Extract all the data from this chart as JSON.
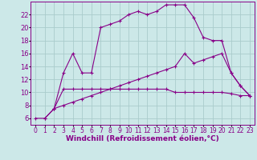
{
  "background_color": "#cce8e8",
  "grid_color": "#aacccc",
  "line_color": "#880088",
  "marker": "+",
  "xlabel": "Windchill (Refroidissement éolien,°C)",
  "xlabel_fontsize": 6.5,
  "xtick_fontsize": 5.5,
  "ytick_fontsize": 6.0,
  "xlim": [
    -0.5,
    23.5
  ],
  "ylim": [
    5,
    24
  ],
  "yticks": [
    6,
    8,
    10,
    12,
    14,
    16,
    18,
    20,
    22
  ],
  "xticks": [
    0,
    1,
    2,
    3,
    4,
    5,
    6,
    7,
    8,
    9,
    10,
    11,
    12,
    13,
    14,
    15,
    16,
    17,
    18,
    19,
    20,
    21,
    22,
    23
  ],
  "series": [
    {
      "x": [
        1,
        2,
        3,
        4,
        5,
        6,
        7,
        8,
        9,
        10,
        11,
        12,
        13,
        14,
        15,
        16,
        17,
        18,
        19,
        20,
        21,
        22,
        23
      ],
      "y": [
        6,
        7.5,
        13,
        16,
        13,
        13,
        20,
        20.5,
        21,
        22,
        22.5,
        22,
        22.5,
        23.5,
        23.5,
        23.5,
        21.5,
        18.5,
        18,
        18,
        13,
        11,
        9.5
      ]
    },
    {
      "x": [
        2,
        3,
        4,
        5,
        6,
        7,
        8,
        9,
        10,
        11,
        12,
        13,
        14,
        15,
        16,
        17,
        18,
        19,
        20,
        21,
        22,
        23
      ],
      "y": [
        7.5,
        8,
        8.5,
        9,
        9.5,
        10,
        10.5,
        11,
        11.5,
        12,
        12.5,
        13,
        13.5,
        14,
        16,
        14.5,
        15,
        15.5,
        16,
        13,
        11,
        9.5
      ]
    },
    {
      "x": [
        0,
        1,
        2,
        3,
        4,
        5,
        6,
        7,
        8,
        9,
        10,
        11,
        12,
        13,
        14,
        15,
        16,
        17,
        18,
        19,
        20,
        21,
        22,
        23
      ],
      "y": [
        6,
        6,
        7.5,
        10.5,
        10.5,
        10.5,
        10.5,
        10.5,
        10.5,
        10.5,
        10.5,
        10.5,
        10.5,
        10.5,
        10.5,
        10.0,
        10.0,
        10.0,
        10.0,
        10.0,
        10.0,
        9.8,
        9.5,
        9.5
      ]
    }
  ]
}
